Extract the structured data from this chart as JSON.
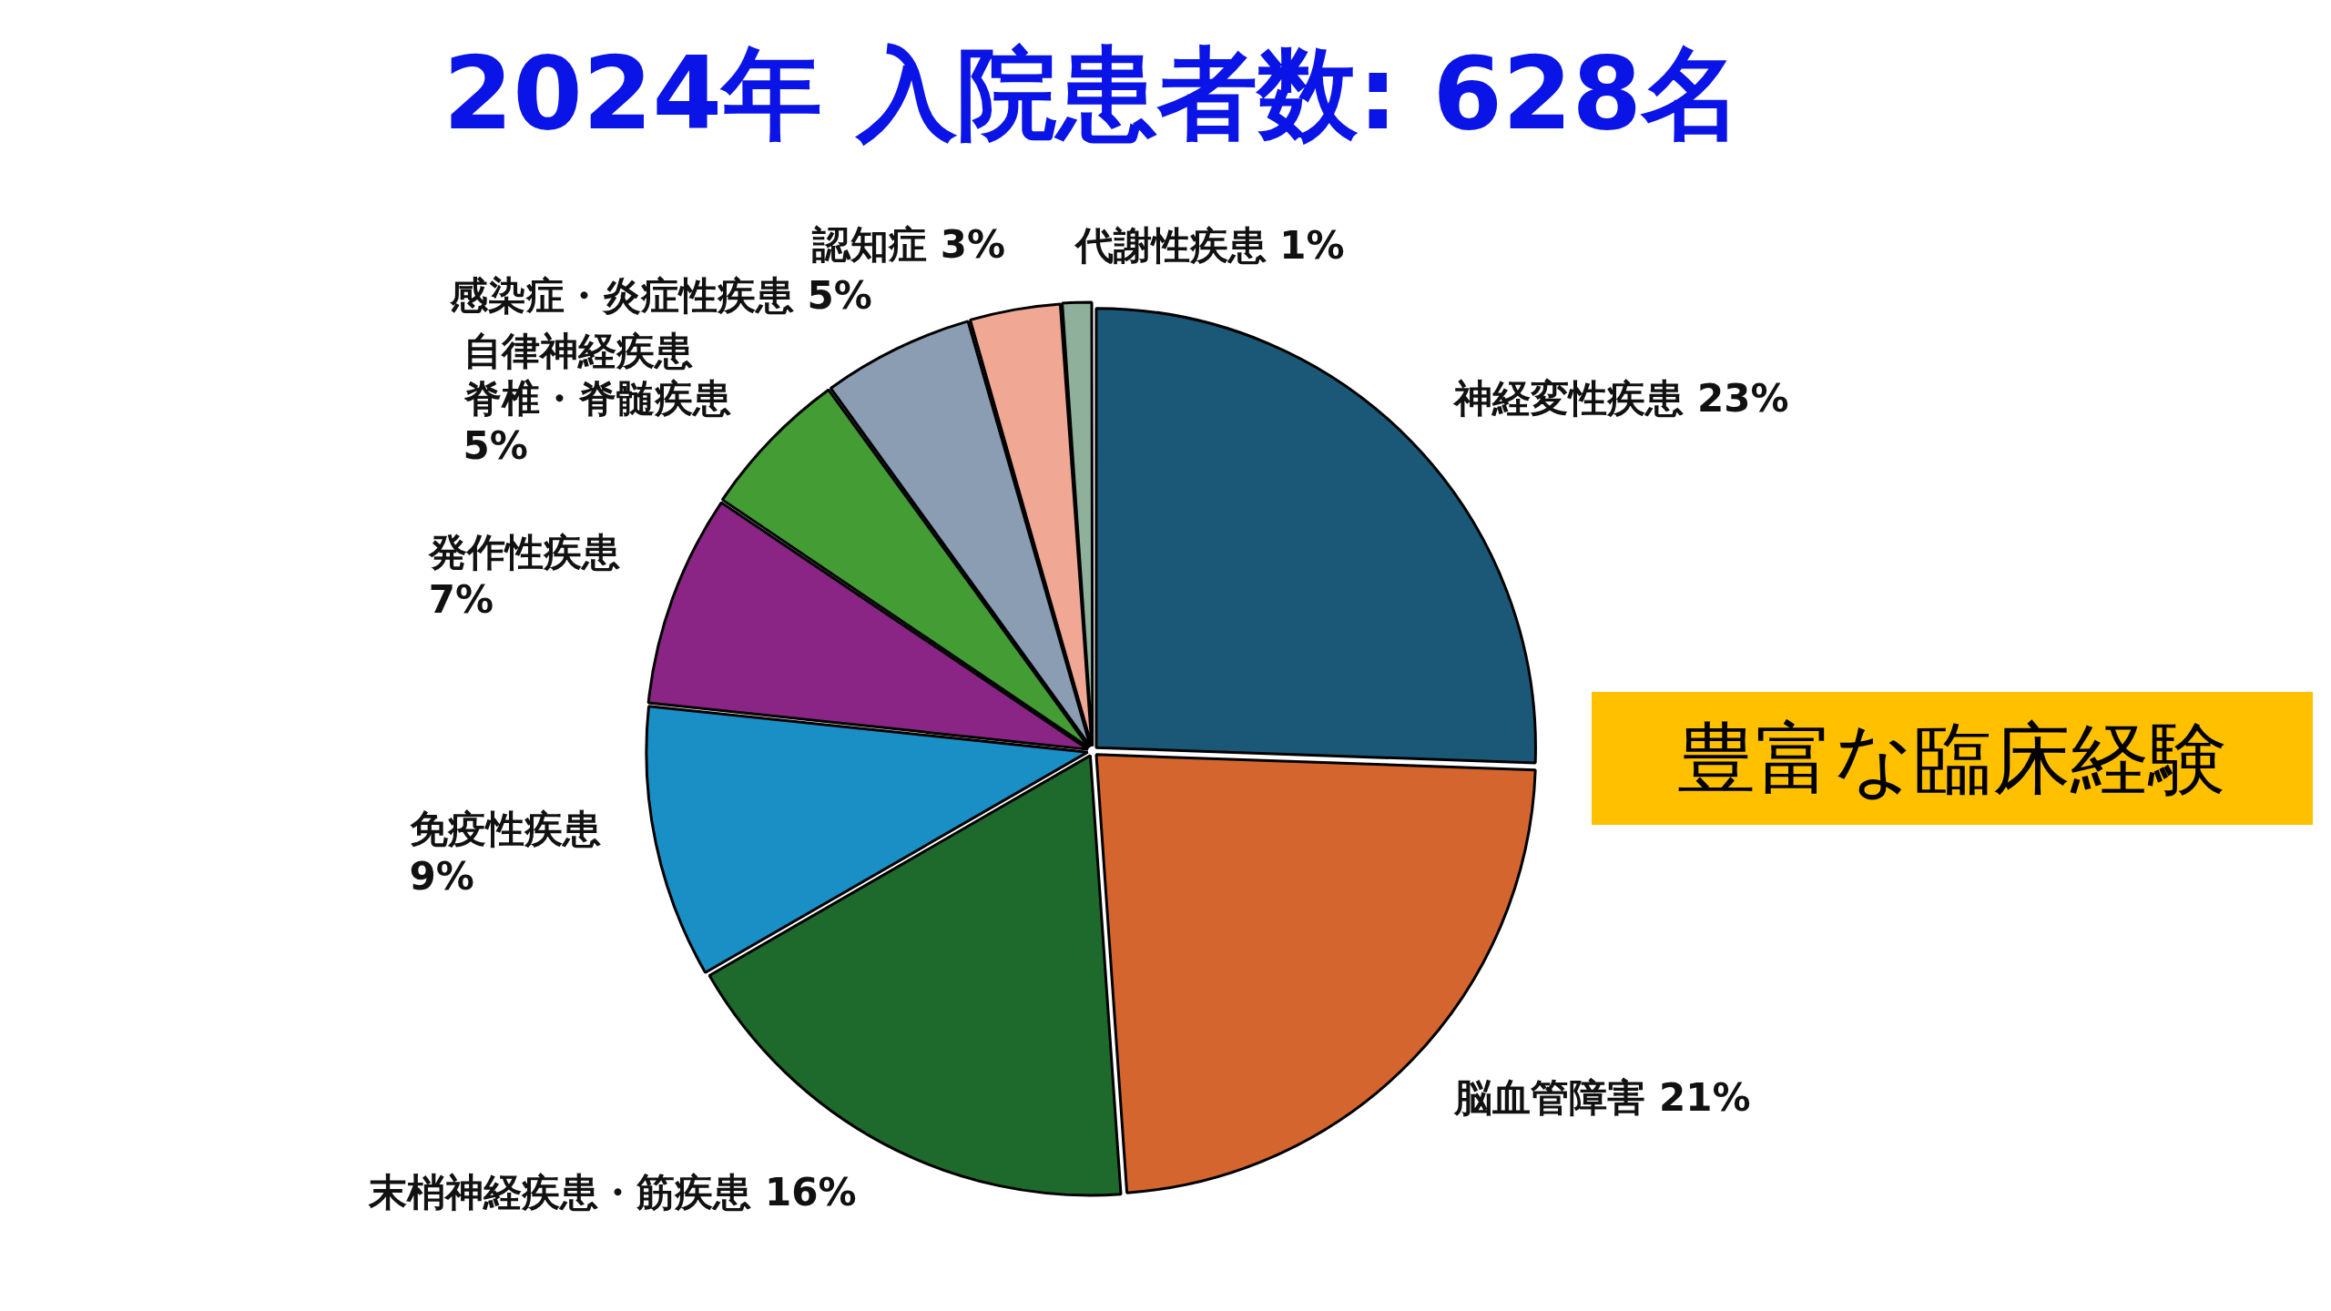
{
  "chart_data": {
    "type": "pie",
    "title": "2024年 入院患者数: 628名",
    "categories": [
      "神経変性疾患",
      "脳血管障害",
      "末梢神経疾患・筋疾患",
      "免疫性疾患",
      "発作性疾患",
      "自律神経疾患脊椎・脊髄疾患",
      "感染症・炎症性疾患",
      "認知症",
      "代謝性疾患"
    ],
    "values": [
      23,
      21,
      16,
      9,
      7,
      5,
      5,
      3,
      1
    ],
    "value_labels": [
      "23%",
      "21%",
      "16%",
      "9%",
      "7%",
      "5%",
      "5%",
      "3%",
      "1%"
    ],
    "colors": [
      "#1b5878",
      "#d5652e",
      "#1d6a2c",
      "#1a8fc6",
      "#8a2585",
      "#449c34",
      "#8a9db2",
      "#f0a894",
      "#8fb09a"
    ],
    "annotations": [
      "豊富な臨床経験"
    ],
    "legend": false
  }
}
